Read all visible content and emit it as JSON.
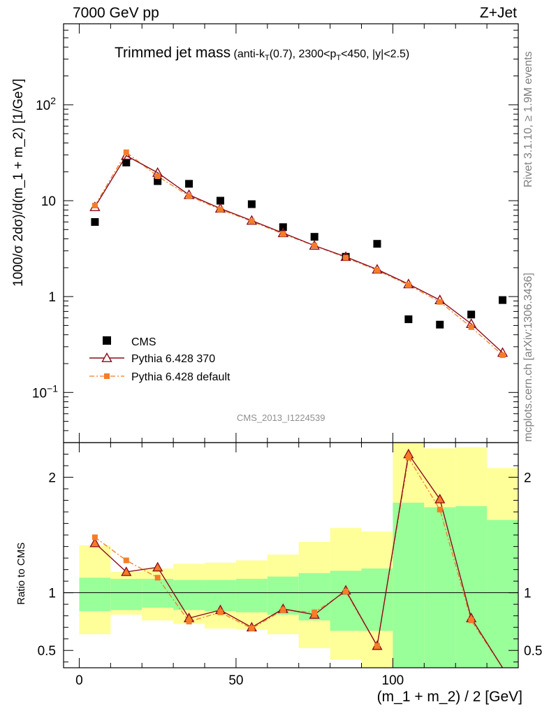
{
  "header": {
    "energy_label": "7000 GeV pp",
    "process_label": "Z+Jet"
  },
  "side_labels": {
    "rivet": "Rivet 3.1.10, ≥ 1.9M events",
    "mcplots": "mcplots.cern.ch [arXiv:1306.3436]"
  },
  "chart_data": [
    {
      "type": "scatter",
      "panel": "main",
      "title": "Trimmed jet mass",
      "subtitle": "(anti-k_T(0.7), 2300<p_T<450, |y|<2.5)",
      "analysis_id": "CMS_2013_I1224539",
      "ylabel": "1000/σ 2dσ)/d(m_1 + m_2) [1/GeV]",
      "yscale": "log",
      "ylim": [
        0.03,
        700
      ],
      "xlim": [
        -5,
        140
      ],
      "y_ticks": [
        "10^-1",
        "1",
        "10",
        "10^2"
      ],
      "legend_position": "bottom-left",
      "series": [
        {
          "name": "CMS",
          "style": "black-square",
          "color": "#000000",
          "x": [
            5,
            15,
            25,
            35,
            45,
            55,
            65,
            75,
            85,
            95,
            105,
            115,
            125,
            135
          ],
          "y": [
            6.0,
            25.0,
            16.0,
            15.0,
            10.0,
            9.2,
            5.3,
            4.2,
            2.6,
            3.55,
            0.58,
            0.51,
            0.65,
            0.92
          ]
        },
        {
          "name": "Pythia 6.428 370",
          "style": "line-open-triangle",
          "color": "#8b0a1a",
          "x": [
            5,
            15,
            25,
            35,
            45,
            55,
            65,
            75,
            85,
            95,
            105,
            115,
            125,
            135
          ],
          "y": [
            8.6,
            29.5,
            19.6,
            11.5,
            8.3,
            6.2,
            4.6,
            3.4,
            2.6,
            1.92,
            1.35,
            0.92,
            0.52,
            0.26
          ]
        },
        {
          "name": "Pythia 6.428 default",
          "style": "dashdot-filled-square",
          "color": "#f57c28",
          "x": [
            5,
            15,
            25,
            35,
            45,
            55,
            65,
            75,
            85,
            95,
            105,
            115,
            125,
            135
          ],
          "y": [
            8.9,
            32.0,
            18.0,
            11.2,
            8.1,
            6.1,
            4.5,
            3.4,
            2.55,
            1.88,
            1.32,
            0.88,
            0.48,
            0.245
          ]
        }
      ]
    },
    {
      "type": "line",
      "panel": "ratio",
      "ylabel": "Ratio to CMS",
      "xlabel": "(m_1 + m_2) / 2 [GeV]",
      "ylim": [
        0.35,
        2.3
      ],
      "xlim": [
        -5,
        140
      ],
      "x_ticks": [
        "0",
        "50",
        "100"
      ],
      "y_ticks": [
        "0.5",
        "1",
        "2"
      ],
      "reference_line": 1,
      "uncertainty_bands": {
        "bin_edges": [
          0,
          10,
          20,
          30,
          40,
          50,
          60,
          70,
          80,
          90,
          100,
          110,
          120,
          130,
          140
        ],
        "stat_low": [
          0.84,
          0.85,
          0.87,
          0.85,
          0.84,
          0.83,
          0.81,
          0.76,
          0.67,
          0.67,
          0.3,
          0.3,
          0.3,
          0.3
        ],
        "stat_high": [
          1.13,
          1.12,
          1.12,
          1.11,
          1.11,
          1.12,
          1.14,
          1.17,
          1.19,
          1.21,
          1.78,
          1.74,
          1.75,
          1.63
        ],
        "total_low": [
          0.64,
          0.81,
          0.76,
          0.73,
          0.69,
          0.68,
          0.64,
          0.52,
          0.42,
          0.3,
          0.3,
          0.3,
          0.3,
          0.41
        ],
        "total_high": [
          1.41,
          1.18,
          1.21,
          1.25,
          1.26,
          1.28,
          1.33,
          1.44,
          1.56,
          1.53,
          2.3,
          2.25,
          2.26,
          2.08
        ],
        "stat_color": "#99ff99",
        "total_color": "#ffff99"
      },
      "series": [
        {
          "name": "Pythia 6.428 370",
          "color": "#8b0a1a",
          "x": [
            5,
            15,
            25,
            35,
            45,
            55,
            65,
            75,
            85,
            95,
            105,
            115,
            125,
            135
          ],
          "y": [
            1.43,
            1.18,
            1.22,
            0.78,
            0.85,
            0.7,
            0.86,
            0.81,
            1.02,
            0.54,
            2.2,
            1.81,
            0.78,
            0.28
          ]
        },
        {
          "name": "Pythia 6.428 default",
          "color": "#f57c28",
          "x": [
            5,
            15,
            25,
            35,
            45,
            55,
            65,
            75,
            85,
            95,
            105,
            115,
            125,
            135
          ],
          "y": [
            1.48,
            1.28,
            1.13,
            0.75,
            0.83,
            0.69,
            0.85,
            0.83,
            1.01,
            0.54,
            2.17,
            1.72,
            0.76,
            0.27
          ]
        }
      ]
    }
  ]
}
